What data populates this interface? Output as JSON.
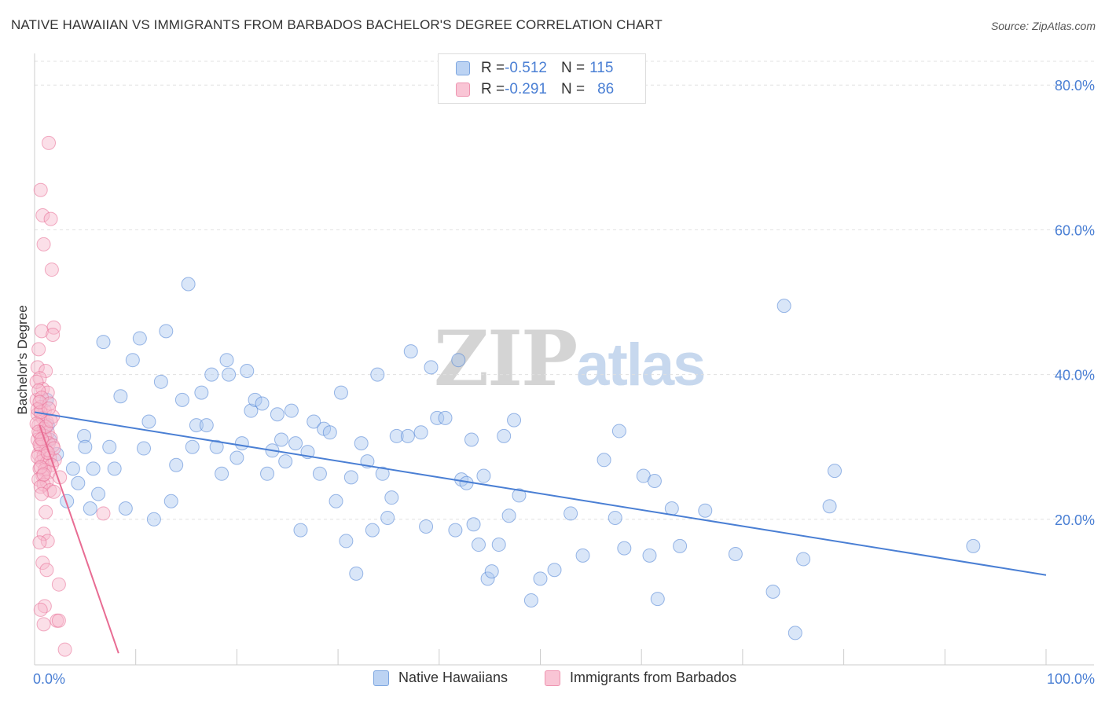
{
  "title": "NATIVE HAWAIIAN VS IMMIGRANTS FROM BARBADOS BACHELOR'S DEGREE CORRELATION CHART",
  "source": "Source: ZipAtlas.com",
  "watermark": {
    "zip": "ZIP",
    "atlas": "atlas"
  },
  "colors": {
    "blue": "#4a7fd4",
    "blue_fill": "#aac8f0",
    "pink": "#e86c93",
    "pink_fill": "#f7b8cc",
    "grid": "#e0e0e0"
  },
  "legend_top": [
    {
      "r_label": "R = ",
      "r_value": "-0.512",
      "n_label": "N = ",
      "n_value": "115"
    },
    {
      "r_label": "R = ",
      "r_value": "-0.291",
      "n_label": "N = ",
      "n_value": "86"
    }
  ],
  "legend_bottom": [
    "Native Hawaiians",
    "Immigrants from Barbados"
  ],
  "chart_data": {
    "type": "scatter",
    "title": "NATIVE HAWAIIAN VS IMMIGRANTS FROM BARBADOS BACHELOR'S DEGREE CORRELATION CHART",
    "xlabel": "",
    "ylabel": "Bachelor's Degree",
    "xlim": [
      0,
      100
    ],
    "ylim": [
      0,
      82
    ],
    "x_tick_labels": [
      "0.0%",
      "100.0%"
    ],
    "y_ticks": [
      20,
      40,
      60,
      80
    ],
    "y_tick_labels": [
      "20.0%",
      "40.0%",
      "60.0%",
      "80.0%"
    ],
    "grid": true,
    "legend_position": "top-center",
    "series": [
      {
        "name": "Native Hawaiians",
        "color": "#4a7fd4",
        "trend": [
          [
            0,
            34.8
          ],
          [
            100,
            12.3
          ]
        ],
        "points": [
          [
            1.2,
            36.5
          ],
          [
            1.3,
            33
          ],
          [
            1.5,
            31
          ],
          [
            2.2,
            29
          ],
          [
            3.2,
            22.5
          ],
          [
            3.8,
            27
          ],
          [
            4.3,
            25
          ],
          [
            4.9,
            31.5
          ],
          [
            5.0,
            30
          ],
          [
            5.5,
            21.5
          ],
          [
            5.8,
            27
          ],
          [
            6.3,
            23.5
          ],
          [
            6.8,
            44.5
          ],
          [
            7.4,
            30
          ],
          [
            7.9,
            27
          ],
          [
            8.5,
            37
          ],
          [
            9.0,
            21.5
          ],
          [
            9.7,
            42
          ],
          [
            10.4,
            45
          ],
          [
            10.8,
            29.8
          ],
          [
            11.3,
            33.5
          ],
          [
            11.8,
            20
          ],
          [
            12.5,
            39
          ],
          [
            13.0,
            46
          ],
          [
            13.5,
            22.5
          ],
          [
            14.0,
            27.5
          ],
          [
            14.6,
            36.5
          ],
          [
            15.2,
            52.5
          ],
          [
            15.6,
            30
          ],
          [
            16.0,
            33
          ],
          [
            16.5,
            37.5
          ],
          [
            17.0,
            33
          ],
          [
            17.5,
            40
          ],
          [
            18.0,
            30
          ],
          [
            18.5,
            26.3
          ],
          [
            19.0,
            42
          ],
          [
            19.2,
            40
          ],
          [
            20.0,
            28.5
          ],
          [
            20.5,
            30.5
          ],
          [
            21.0,
            40.5
          ],
          [
            21.4,
            35
          ],
          [
            21.8,
            36.5
          ],
          [
            22.5,
            36
          ],
          [
            23.0,
            26.3
          ],
          [
            23.5,
            29.5
          ],
          [
            24.0,
            34.5
          ],
          [
            24.4,
            31
          ],
          [
            24.8,
            28
          ],
          [
            25.4,
            35
          ],
          [
            25.8,
            30.5
          ],
          [
            26.3,
            18.5
          ],
          [
            27.0,
            29.3
          ],
          [
            27.6,
            33.5
          ],
          [
            28.2,
            26.3
          ],
          [
            28.6,
            32.5
          ],
          [
            29.2,
            32
          ],
          [
            29.8,
            22.5
          ],
          [
            30.3,
            37.5
          ],
          [
            30.8,
            17
          ],
          [
            31.3,
            25.8
          ],
          [
            31.8,
            12.5
          ],
          [
            32.3,
            30.5
          ],
          [
            32.9,
            28
          ],
          [
            33.4,
            18.5
          ],
          [
            33.9,
            40
          ],
          [
            34.4,
            26.3
          ],
          [
            34.9,
            20.2
          ],
          [
            35.3,
            23
          ],
          [
            35.8,
            31.5
          ],
          [
            36.9,
            31.5
          ],
          [
            37.2,
            43.2
          ],
          [
            38.2,
            32
          ],
          [
            38.7,
            19
          ],
          [
            39.2,
            41
          ],
          [
            39.8,
            34
          ],
          [
            40.6,
            34
          ],
          [
            41.6,
            18.5
          ],
          [
            41.9,
            42
          ],
          [
            42.2,
            25.5
          ],
          [
            42.7,
            25
          ],
          [
            43.2,
            31
          ],
          [
            43.4,
            19.3
          ],
          [
            43.9,
            16.5
          ],
          [
            44.4,
            26
          ],
          [
            44.8,
            11.8
          ],
          [
            45.2,
            12.8
          ],
          [
            45.9,
            16.5
          ],
          [
            46.4,
            31.5
          ],
          [
            46.9,
            20.5
          ],
          [
            47.4,
            33.7
          ],
          [
            47.9,
            23.3
          ],
          [
            49.1,
            8.8
          ],
          [
            50.0,
            11.8
          ],
          [
            51.4,
            13
          ],
          [
            53.0,
            20.8
          ],
          [
            54.2,
            15
          ],
          [
            56.3,
            28.2
          ],
          [
            57.4,
            20.2
          ],
          [
            57.8,
            32.2
          ],
          [
            58.3,
            16
          ],
          [
            60.2,
            26
          ],
          [
            60.8,
            15
          ],
          [
            61.3,
            25.3
          ],
          [
            61.6,
            9
          ],
          [
            63.0,
            21.5
          ],
          [
            63.8,
            16.3
          ],
          [
            66.3,
            21.2
          ],
          [
            69.3,
            15.2
          ],
          [
            73.0,
            10
          ],
          [
            74.1,
            49.5
          ],
          [
            75.2,
            4.3
          ],
          [
            76.0,
            14.5
          ],
          [
            78.6,
            21.8
          ],
          [
            79.1,
            26.7
          ],
          [
            92.8,
            16.3
          ]
        ]
      },
      {
        "name": "Immigrants from Barbados",
        "color": "#e86c93",
        "trend": [
          [
            0.5,
            33
          ],
          [
            8.3,
            1.5
          ]
        ],
        "points": [
          [
            1.4,
            72
          ],
          [
            0.6,
            65.5
          ],
          [
            0.8,
            62
          ],
          [
            1.6,
            61.5
          ],
          [
            0.9,
            58
          ],
          [
            1.7,
            54.5
          ],
          [
            1.9,
            46.5
          ],
          [
            0.7,
            46
          ],
          [
            1.8,
            45.5
          ],
          [
            0.4,
            43.5
          ],
          [
            0.3,
            41
          ],
          [
            1.1,
            40.5
          ],
          [
            0.5,
            39.5
          ],
          [
            0.8,
            38
          ],
          [
            1.3,
            37.5
          ],
          [
            0.2,
            36.5
          ],
          [
            0.6,
            35.5
          ],
          [
            1.0,
            35
          ],
          [
            0.3,
            34.5
          ],
          [
            0.8,
            34
          ],
          [
            1.2,
            33.5
          ],
          [
            0.4,
            33
          ],
          [
            0.9,
            32.5
          ],
          [
            1.3,
            32
          ],
          [
            0.5,
            31.8
          ],
          [
            1.0,
            31.5
          ],
          [
            1.6,
            31.2
          ],
          [
            0.3,
            31
          ],
          [
            0.8,
            30.8
          ],
          [
            1.4,
            30.5
          ],
          [
            1.8,
            30.2
          ],
          [
            0.6,
            30
          ],
          [
            1.1,
            29.5
          ],
          [
            0.4,
            29
          ],
          [
            0.9,
            28.8
          ],
          [
            1.5,
            28.5
          ],
          [
            2.0,
            28.2
          ],
          [
            0.7,
            28
          ],
          [
            1.2,
            27.8
          ],
          [
            1.7,
            27.5
          ],
          [
            0.5,
            27
          ],
          [
            1.0,
            26.8
          ],
          [
            1.4,
            26.5
          ],
          [
            0.8,
            26
          ],
          [
            2.5,
            25.8
          ],
          [
            0.4,
            25.5
          ],
          [
            1.2,
            25.2
          ],
          [
            0.9,
            24.8
          ],
          [
            0.6,
            24.5
          ],
          [
            1.5,
            24
          ],
          [
            1.9,
            23.8
          ],
          [
            0.7,
            23.5
          ],
          [
            1.1,
            21
          ],
          [
            6.8,
            20.8
          ],
          [
            0.9,
            18
          ],
          [
            1.3,
            17
          ],
          [
            0.5,
            16.8
          ],
          [
            0.8,
            14
          ],
          [
            1.2,
            13
          ],
          [
            2.4,
            11
          ],
          [
            1.0,
            8
          ],
          [
            0.6,
            7.5
          ],
          [
            2.2,
            6
          ],
          [
            2.4,
            6
          ],
          [
            0.9,
            5.5
          ],
          [
            3.0,
            2
          ],
          [
            0.2,
            39
          ],
          [
            0.4,
            37.8
          ],
          [
            0.7,
            36.8
          ],
          [
            1.5,
            36
          ],
          [
            0.3,
            35.2
          ],
          [
            0.6,
            34.8
          ],
          [
            1.8,
            34.2
          ],
          [
            0.2,
            33.2
          ],
          [
            1.1,
            32.8
          ],
          [
            0.5,
            30.3
          ],
          [
            1.9,
            29.8
          ],
          [
            0.3,
            28.6
          ],
          [
            0.6,
            27.2
          ],
          [
            1.3,
            29.2
          ],
          [
            0.4,
            32.1
          ],
          [
            0.7,
            31.1
          ],
          [
            1.6,
            33.6
          ],
          [
            0.5,
            36.2
          ],
          [
            0.9,
            26.2
          ],
          [
            1.4,
            35.3
          ]
        ]
      }
    ]
  }
}
